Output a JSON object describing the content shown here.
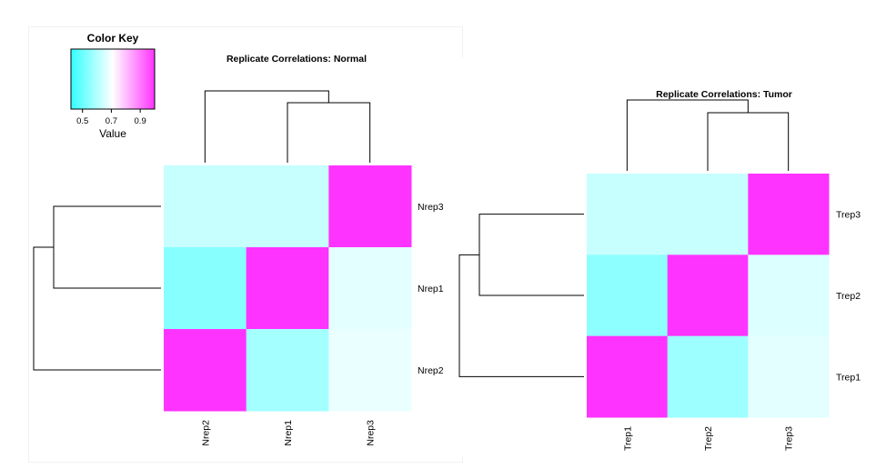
{
  "colors": {
    "low": "#33ffff",
    "mid": "#ffffff",
    "high": "#ff33ff",
    "dendrogram": "#000000"
  },
  "color_key": {
    "title": "Color Key",
    "label": "Value",
    "ticks": [
      "0.5",
      "0.7",
      "0.9"
    ],
    "tick_values": [
      0.5,
      0.7,
      0.9
    ],
    "range": [
      0.42,
      1.0
    ]
  },
  "chart_data": [
    {
      "type": "heatmap",
      "title": "Replicate Correlations: Normal",
      "row_labels_top_to_bottom": [
        "Nrep3",
        "Nrep1",
        "Nrep2"
      ],
      "column_labels_left_to_right": [
        "Nrep2",
        "Nrep1",
        "Nrep3"
      ],
      "values": [
        [
          0.63,
          0.63,
          1.0
        ],
        [
          0.54,
          1.0,
          0.67
        ],
        [
          1.0,
          0.58,
          0.68
        ]
      ],
      "column_dendrogram": "Nrep2 joins (Nrep1, Nrep3)",
      "row_dendrogram": "Nrep2 joins (Nrep3, Nrep1)"
    },
    {
      "type": "heatmap",
      "title": "Replicate Correlations: Tumor",
      "row_labels_top_to_bottom": [
        "Trep3",
        "Trep2",
        "Trep1"
      ],
      "column_labels_left_to_right": [
        "Trep1",
        "Trep2",
        "Trep3"
      ],
      "values": [
        [
          0.63,
          0.63,
          1.0
        ],
        [
          0.55,
          1.0,
          0.66
        ],
        [
          1.0,
          0.57,
          0.67
        ]
      ],
      "column_dendrogram": "Trep1 joins (Trep2, Trep3)",
      "row_dendrogram": "Trep1 joins (Trep3, Trep2)"
    }
  ]
}
